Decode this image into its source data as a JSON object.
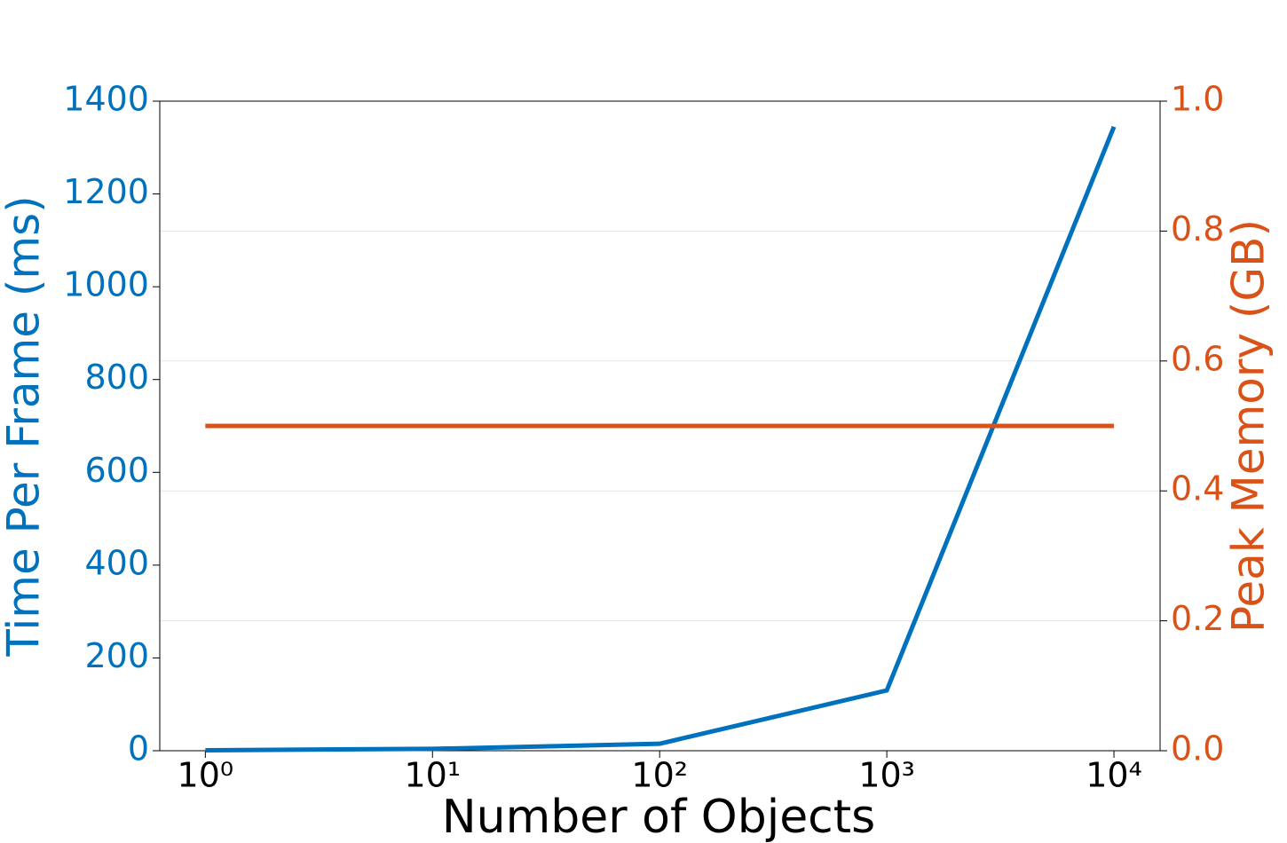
{
  "chart_data": {
    "type": "line",
    "x_label": "Number of Objects",
    "y_label": "Time Per Frame (ms)",
    "y2_label": "Peak Memory (GB)",
    "x": [
      1,
      10,
      100,
      1000,
      10000
    ],
    "x_scale": "log",
    "xlim": [
      0.63,
      15960
    ],
    "xticks": [
      {
        "value": 1,
        "label": "10⁰"
      },
      {
        "value": 10,
        "label": "10¹"
      },
      {
        "value": 100,
        "label": "10²"
      },
      {
        "value": 1000,
        "label": "10³"
      },
      {
        "value": 10000,
        "label": "10⁴"
      }
    ],
    "ylim": [
      0,
      1400
    ],
    "yticks": [
      0,
      200,
      400,
      600,
      800,
      1000,
      1200,
      1400
    ],
    "y2lim": [
      0,
      1
    ],
    "y2ticks": [
      {
        "value": 0,
        "label": "0.0"
      },
      {
        "value": 0.2,
        "label": "0.2"
      },
      {
        "value": 0.4,
        "label": "0.4"
      },
      {
        "value": 0.6,
        "label": "0.6"
      },
      {
        "value": 0.8,
        "label": "0.8"
      },
      {
        "value": 1,
        "label": "1.0"
      }
    ],
    "y2_grid": true,
    "series": [
      {
        "color": "#0072bd",
        "values": [
          1,
          4,
          15,
          130,
          1345
        ]
      },
      {
        "color": "#d95319",
        "axis": "y2",
        "values": [
          0.5,
          0.5,
          0.5,
          0.5,
          0.5
        ]
      }
    ]
  }
}
